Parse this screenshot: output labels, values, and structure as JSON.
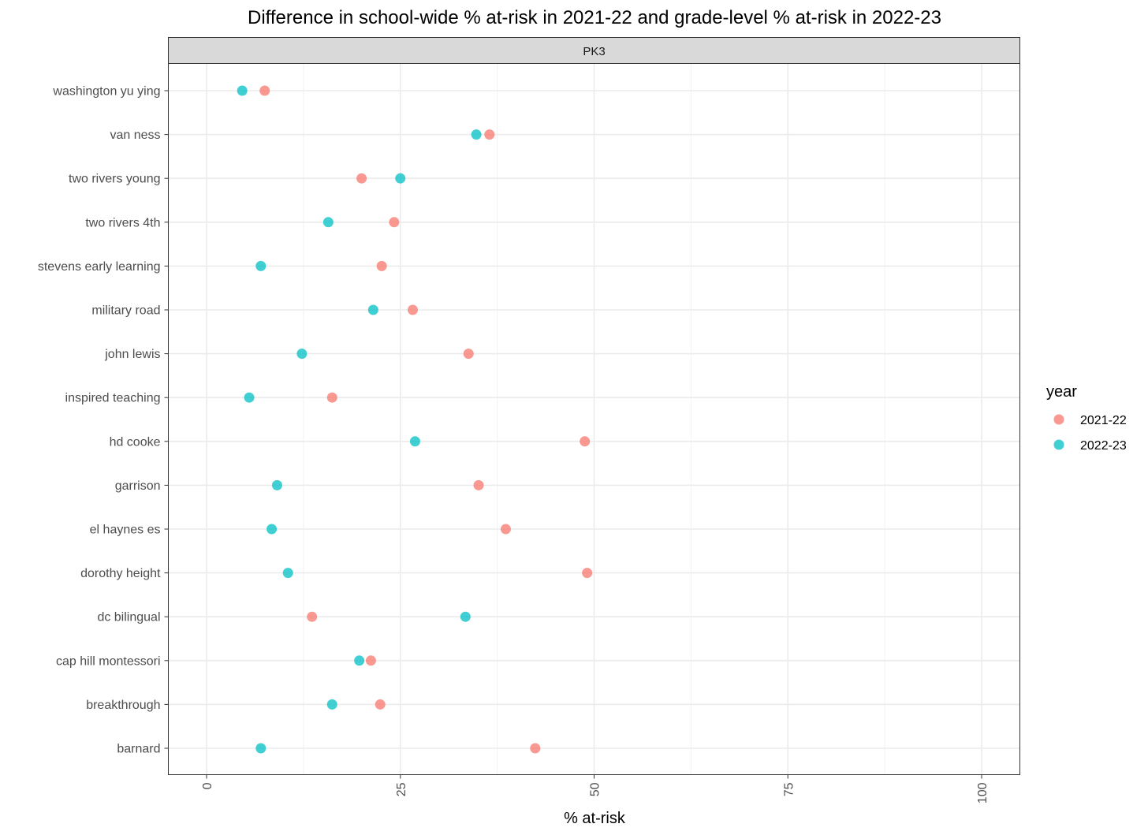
{
  "chart_data": {
    "type": "scatter",
    "title": "Difference in school-wide % at-risk in 2021-22 and grade-level % at-risk in 2022-23",
    "facet": "PK3",
    "xlabel": "% at-risk",
    "ylabel": "",
    "xlim": [
      0,
      100
    ],
    "x_ticks": [
      "0",
      "25",
      "50",
      "75",
      "100"
    ],
    "x_tick_values": [
      0,
      25,
      50,
      75,
      100
    ],
    "grid": true,
    "legend": {
      "title": "year",
      "position": "right"
    },
    "categories": [
      "barnard",
      "breakthrough",
      "cap hill montessori",
      "dc bilingual",
      "dorothy height",
      "el haynes es",
      "garrison",
      "hd cooke",
      "inspired teaching",
      "john lewis",
      "military road",
      "stevens early learning",
      "two rivers 4th",
      "two rivers young",
      "van ness",
      "washington yu ying"
    ],
    "series": [
      {
        "name": "2021-22",
        "color": "#F8766D",
        "values": [
          42.4,
          22.4,
          21.2,
          13.6,
          49.1,
          38.6,
          35.1,
          48.8,
          16.2,
          33.8,
          26.6,
          22.6,
          24.2,
          20.0,
          36.5,
          7.5
        ]
      },
      {
        "name": "2022-23",
        "color": "#00BFC4",
        "values": [
          7.0,
          16.2,
          19.7,
          33.4,
          10.5,
          8.4,
          9.1,
          26.9,
          5.5,
          12.3,
          21.5,
          7.0,
          15.7,
          25.0,
          34.8,
          4.6
        ]
      }
    ]
  }
}
